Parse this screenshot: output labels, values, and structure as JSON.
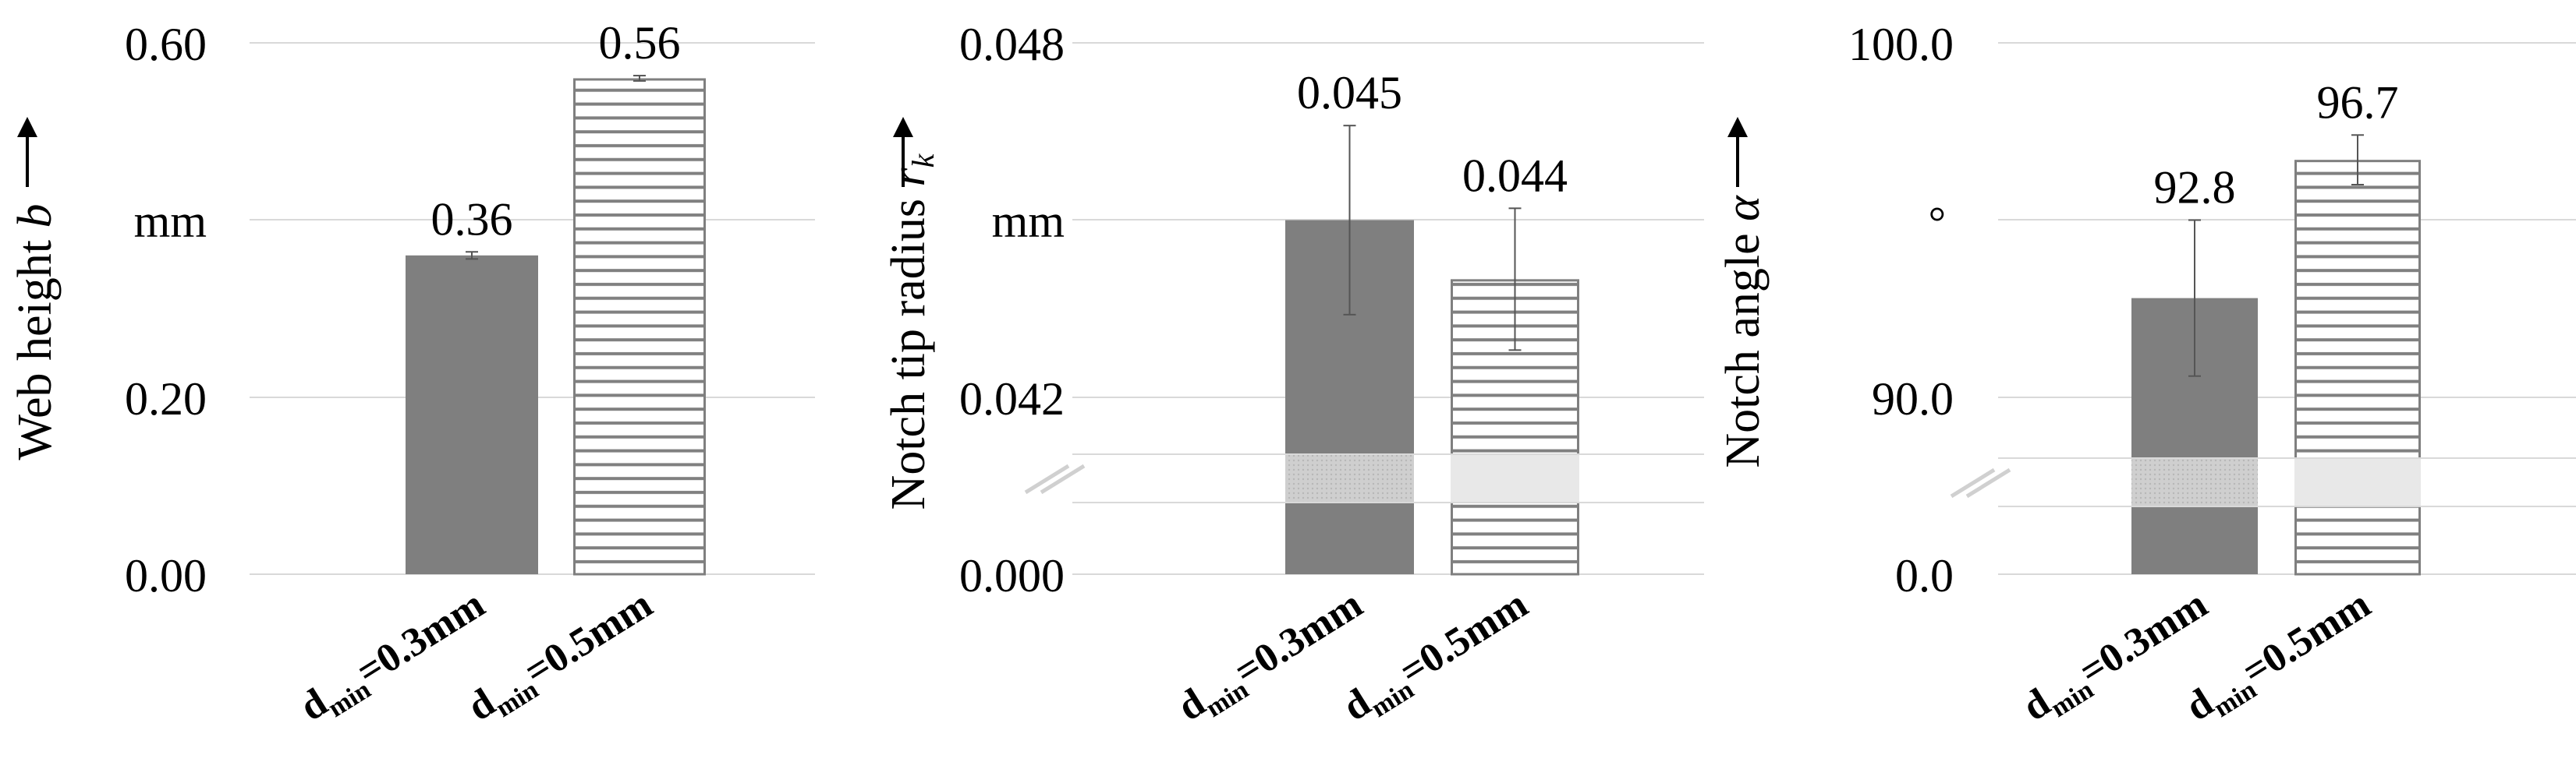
{
  "chart_data": [
    {
      "type": "bar",
      "categories": [
        "d_min=0.3mm",
        "d_min=0.5mm"
      ],
      "category_labels": [
        {
          "main": "d",
          "sub": "min",
          "rest": "=0.3mm"
        },
        {
          "main": "d",
          "sub": "min",
          "rest": "=0.5mm"
        }
      ],
      "values": [
        0.36,
        0.56
      ],
      "error": [
        0.004,
        0.003
      ],
      "data_labels": [
        "0.36",
        "0.56"
      ],
      "ylim": [
        0,
        0.6
      ],
      "y_ticks": [
        "0.00",
        "0.20",
        "0.60"
      ],
      "y_unit": "mm",
      "ylabel": {
        "text": "Web height ",
        "symbol": "b"
      },
      "axis_break": false,
      "grid": true
    },
    {
      "type": "bar",
      "categories": [
        "d_min=0.3mm",
        "d_min=0.5mm"
      ],
      "category_labels": [
        {
          "main": "d",
          "sub": "min",
          "rest": "=0.3mm"
        },
        {
          "main": "d",
          "sub": "min",
          "rest": "=0.5mm"
        }
      ],
      "values": [
        0.045,
        0.044
      ],
      "error": [
        0.0016,
        0.0012
      ],
      "data_labels": [
        "0.045",
        "0.044"
      ],
      "ylim": [
        0.042,
        0.048
      ],
      "y_ticks": [
        "0.000",
        "0.042",
        "0.048"
      ],
      "y_unit": "mm",
      "ylabel": {
        "text": "Notch tip radius ",
        "symbol": "r",
        "symbol_sub": "k"
      },
      "axis_break": true,
      "grid": true
    },
    {
      "type": "bar",
      "categories": [
        "d_min=0.3mm",
        "d_min=0.5mm"
      ],
      "category_labels": [
        {
          "main": "d",
          "sub": "min",
          "rest": "=0.3mm"
        },
        {
          "main": "d",
          "sub": "min",
          "rest": "=0.5mm"
        }
      ],
      "values": [
        92.8,
        96.7
      ],
      "error": [
        2.2,
        0.7
      ],
      "data_labels": [
        "92.8",
        "96.7"
      ],
      "ylim": [
        90.0,
        100.0
      ],
      "y_ticks": [
        "0.0",
        "90.0",
        "100.0"
      ],
      "y_unit": "°",
      "ylabel": {
        "text": "Notch angle ",
        "symbol": "α"
      },
      "axis_break": true,
      "grid": true
    }
  ],
  "colors": {
    "bar_solid": "#7f7f7f",
    "bar_stripe": "#7f7f7f",
    "grid": "#d9d9d9",
    "error": "#555555",
    "text": "#000000"
  }
}
